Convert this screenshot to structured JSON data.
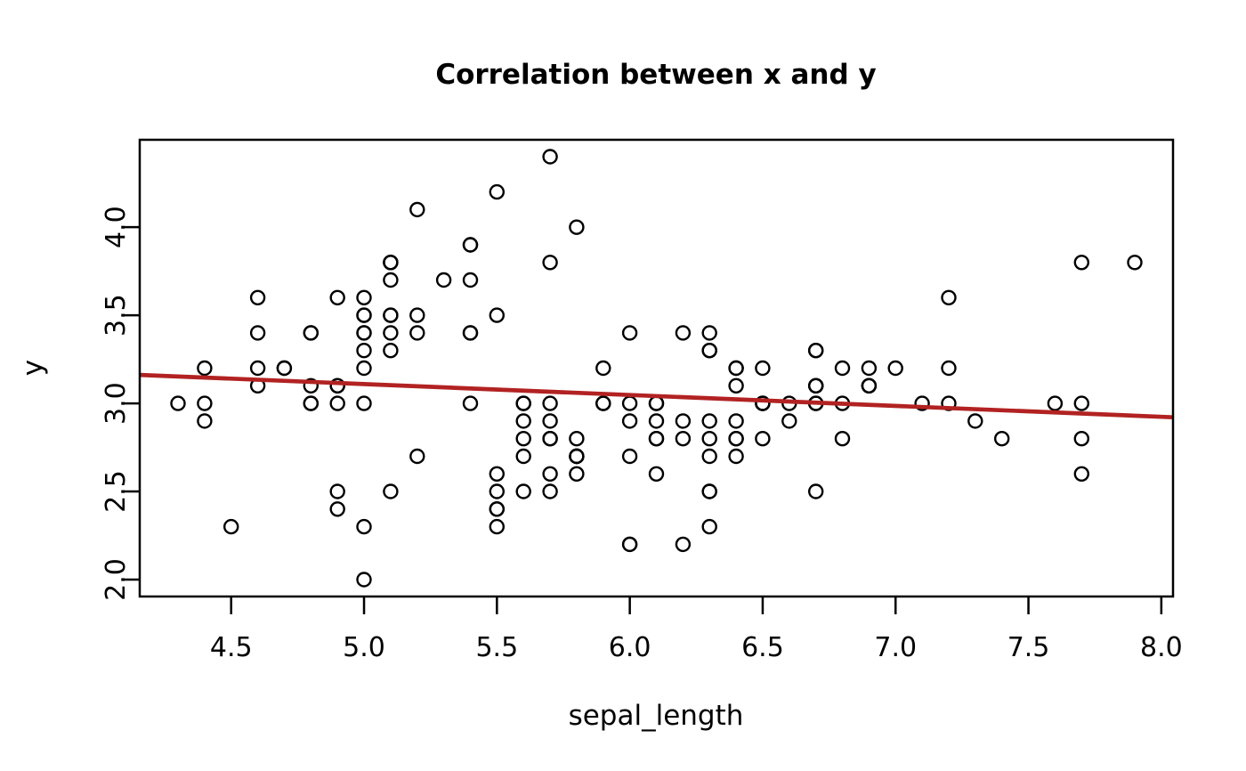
{
  "figure": {
    "background": "#ffffff"
  },
  "chart_data": {
    "type": "scatter",
    "title": "Correlation between x and y",
    "xlabel": "sepal_length",
    "ylabel": "y",
    "xlim": [
      4.156,
      8.044
    ],
    "ylim": [
      1.904,
      4.496
    ],
    "xticks": [
      4.5,
      5.0,
      5.5,
      6.0,
      6.5,
      7.0,
      7.5,
      8.0
    ],
    "xtick_labels": [
      "4.5",
      "5.0",
      "5.5",
      "6.0",
      "6.5",
      "7.0",
      "7.5",
      "8.0"
    ],
    "yticks": [
      2.0,
      2.5,
      3.0,
      3.5,
      4.0
    ],
    "ytick_labels": [
      "2.0",
      "2.5",
      "3.0",
      "3.5",
      "4.0"
    ],
    "grid": false,
    "legend": null,
    "point_style": {
      "shape": "open-circle",
      "stroke": "#000000"
    },
    "regression_line": {
      "slope": -0.0618848,
      "intercept": 3.41895,
      "color": "#B22222",
      "x_range": [
        4.156,
        8.044
      ],
      "y_at_x_range": [
        3.162,
        2.921
      ]
    },
    "points": [
      [
        5.1,
        3.5
      ],
      [
        4.9,
        3.0
      ],
      [
        4.7,
        3.2
      ],
      [
        4.6,
        3.1
      ],
      [
        5.0,
        3.6
      ],
      [
        5.4,
        3.9
      ],
      [
        4.6,
        3.4
      ],
      [
        5.0,
        3.4
      ],
      [
        4.4,
        2.9
      ],
      [
        4.9,
        3.1
      ],
      [
        5.4,
        3.7
      ],
      [
        4.8,
        3.4
      ],
      [
        4.8,
        3.0
      ],
      [
        4.3,
        3.0
      ],
      [
        5.8,
        4.0
      ],
      [
        5.7,
        4.4
      ],
      [
        5.4,
        3.9
      ],
      [
        5.1,
        3.5
      ],
      [
        5.7,
        3.8
      ],
      [
        5.1,
        3.8
      ],
      [
        5.4,
        3.4
      ],
      [
        5.1,
        3.7
      ],
      [
        4.6,
        3.6
      ],
      [
        5.1,
        3.3
      ],
      [
        4.8,
        3.4
      ],
      [
        5.0,
        3.0
      ],
      [
        5.0,
        3.4
      ],
      [
        5.2,
        3.5
      ],
      [
        5.2,
        3.4
      ],
      [
        4.7,
        3.2
      ],
      [
        4.8,
        3.1
      ],
      [
        5.4,
        3.4
      ],
      [
        5.2,
        4.1
      ],
      [
        5.5,
        4.2
      ],
      [
        4.9,
        3.1
      ],
      [
        5.0,
        3.2
      ],
      [
        5.5,
        3.5
      ],
      [
        4.9,
        3.6
      ],
      [
        4.4,
        3.0
      ],
      [
        5.1,
        3.4
      ],
      [
        5.0,
        3.5
      ],
      [
        4.5,
        2.3
      ],
      [
        4.4,
        3.2
      ],
      [
        5.0,
        3.5
      ],
      [
        5.1,
        3.8
      ],
      [
        4.8,
        3.0
      ],
      [
        5.1,
        3.8
      ],
      [
        4.6,
        3.2
      ],
      [
        5.3,
        3.7
      ],
      [
        5.0,
        3.3
      ],
      [
        7.0,
        3.2
      ],
      [
        6.4,
        3.2
      ],
      [
        6.9,
        3.1
      ],
      [
        5.5,
        2.3
      ],
      [
        6.5,
        2.8
      ],
      [
        5.7,
        2.8
      ],
      [
        6.3,
        3.3
      ],
      [
        4.9,
        2.4
      ],
      [
        6.6,
        2.9
      ],
      [
        5.2,
        2.7
      ],
      [
        5.0,
        2.0
      ],
      [
        5.9,
        3.0
      ],
      [
        6.0,
        2.2
      ],
      [
        6.1,
        2.9
      ],
      [
        5.6,
        2.9
      ],
      [
        6.7,
        3.1
      ],
      [
        5.6,
        3.0
      ],
      [
        5.8,
        2.7
      ],
      [
        6.2,
        2.2
      ],
      [
        5.6,
        2.5
      ],
      [
        5.9,
        3.2
      ],
      [
        6.1,
        2.8
      ],
      [
        6.3,
        2.5
      ],
      [
        6.1,
        2.8
      ],
      [
        6.4,
        2.9
      ],
      [
        6.6,
        3.0
      ],
      [
        6.8,
        2.8
      ],
      [
        6.7,
        3.0
      ],
      [
        6.0,
        2.9
      ],
      [
        5.7,
        2.6
      ],
      [
        5.5,
        2.4
      ],
      [
        5.5,
        2.4
      ],
      [
        5.8,
        2.7
      ],
      [
        6.0,
        2.7
      ],
      [
        5.4,
        3.0
      ],
      [
        6.0,
        3.4
      ],
      [
        6.7,
        3.1
      ],
      [
        6.3,
        2.3
      ],
      [
        5.6,
        3.0
      ],
      [
        5.5,
        2.5
      ],
      [
        5.5,
        2.6
      ],
      [
        6.1,
        3.0
      ],
      [
        5.8,
        2.6
      ],
      [
        5.0,
        2.3
      ],
      [
        5.6,
        2.7
      ],
      [
        5.7,
        3.0
      ],
      [
        5.7,
        2.9
      ],
      [
        6.2,
        2.9
      ],
      [
        5.1,
        2.5
      ],
      [
        5.7,
        2.8
      ],
      [
        6.3,
        3.3
      ],
      [
        5.8,
        2.7
      ],
      [
        7.1,
        3.0
      ],
      [
        6.3,
        2.9
      ],
      [
        6.5,
        3.0
      ],
      [
        7.6,
        3.0
      ],
      [
        4.9,
        2.5
      ],
      [
        7.3,
        2.9
      ],
      [
        6.7,
        2.5
      ],
      [
        7.2,
        3.6
      ],
      [
        6.5,
        3.2
      ],
      [
        6.4,
        2.7
      ],
      [
        6.8,
        3.0
      ],
      [
        5.7,
        2.5
      ],
      [
        5.8,
        2.8
      ],
      [
        6.4,
        3.2
      ],
      [
        6.5,
        3.0
      ],
      [
        7.7,
        3.8
      ],
      [
        7.7,
        2.6
      ],
      [
        6.0,
        2.2
      ],
      [
        6.9,
        3.2
      ],
      [
        5.6,
        2.8
      ],
      [
        7.7,
        2.8
      ],
      [
        6.3,
        2.7
      ],
      [
        6.7,
        3.3
      ],
      [
        7.2,
        3.2
      ],
      [
        6.2,
        2.8
      ],
      [
        6.1,
        3.0
      ],
      [
        6.4,
        2.8
      ],
      [
        7.2,
        3.0
      ],
      [
        7.4,
        2.8
      ],
      [
        7.9,
        3.8
      ],
      [
        6.4,
        2.8
      ],
      [
        6.3,
        2.8
      ],
      [
        6.1,
        2.6
      ],
      [
        7.7,
        3.0
      ],
      [
        6.3,
        3.4
      ],
      [
        6.4,
        3.1
      ],
      [
        6.0,
        3.0
      ],
      [
        6.9,
        3.1
      ],
      [
        6.7,
        3.1
      ],
      [
        6.9,
        3.1
      ],
      [
        5.8,
        2.7
      ],
      [
        6.8,
        3.2
      ],
      [
        6.7,
        3.3
      ],
      [
        6.7,
        3.0
      ],
      [
        6.3,
        2.5
      ],
      [
        6.5,
        3.0
      ],
      [
        6.2,
        3.4
      ],
      [
        5.9,
        3.0
      ]
    ]
  }
}
